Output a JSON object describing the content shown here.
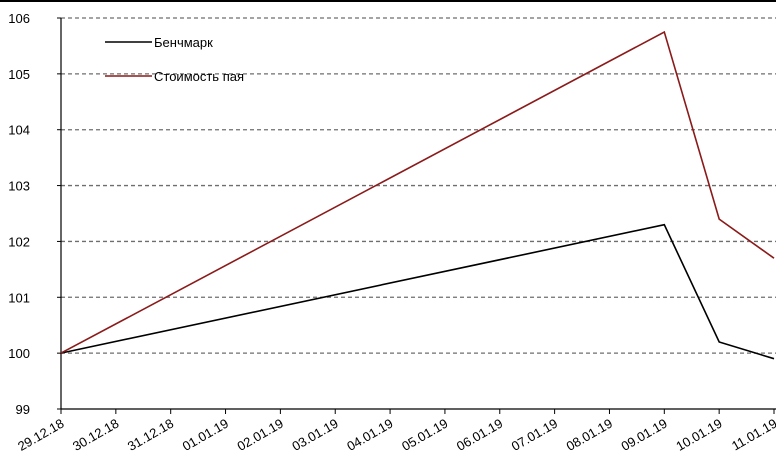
{
  "chart_data": {
    "type": "line",
    "title": "",
    "xlabel": "",
    "ylabel": "",
    "categories": [
      "29.12.18",
      "30.12.18",
      "31.12.18",
      "01.01.19",
      "02.01.19",
      "03.01.19",
      "04.01.19",
      "05.01.19",
      "06.01.19",
      "07.01.19",
      "08.01.19",
      "09.01.19",
      "10.01.19",
      "11.01.19"
    ],
    "y_ticks": [
      "99",
      "100",
      "101",
      "102",
      "103",
      "104",
      "105",
      "106"
    ],
    "ylim": [
      99,
      106
    ],
    "grid": true,
    "legend_position": "top-left",
    "series": [
      {
        "name": "Бенчмарк",
        "color": "#000000",
        "points": [
          {
            "x": "29.12.18",
            "y": 100.0
          },
          {
            "x": "09.01.19",
            "y": 102.3
          },
          {
            "x": "10.01.19",
            "y": 100.2
          },
          {
            "x": "11.01.19",
            "y": 99.9
          }
        ]
      },
      {
        "name": "Стоимость пая",
        "color": "#8b1a1a",
        "points": [
          {
            "x": "29.12.18",
            "y": 100.0
          },
          {
            "x": "09.01.19",
            "y": 105.75
          },
          {
            "x": "10.01.19",
            "y": 102.4
          },
          {
            "x": "11.01.19",
            "y": 101.7
          }
        ]
      }
    ]
  }
}
